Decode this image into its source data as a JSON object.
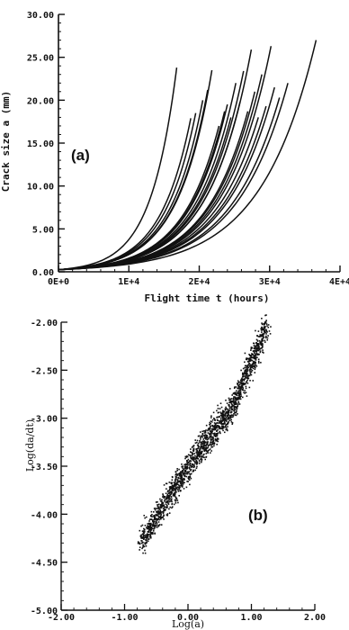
{
  "chart_data": [
    {
      "type": "line",
      "panel_label": "(a)",
      "xlabel": "Flight time t (hours)",
      "ylabel": "Crack size a (mm)",
      "xlim": [
        0,
        40000
      ],
      "ylim": [
        0,
        30
      ],
      "x_ticks": [
        0,
        10000,
        20000,
        30000,
        40000
      ],
      "x_tick_labels": [
        "0E+0",
        "1E+4",
        "2E+4",
        "3E+4",
        "4E+4"
      ],
      "y_ticks": [
        0,
        5,
        10,
        15,
        20,
        25,
        30
      ],
      "y_tick_labels": [
        "0.00",
        "5.00",
        "10.00",
        "15.00",
        "20.00",
        "25.00",
        "30.00"
      ],
      "grid": false,
      "curve_shape": "exponential growth from a0 = 0.25 mm to the final crack size at the failure time",
      "a0": 0.25,
      "series": [
        {
          "tf": 16800,
          "af": 23.8
        },
        {
          "tf": 18800,
          "af": 17.9
        },
        {
          "tf": 19500,
          "af": 18.5
        },
        {
          "tf": 20500,
          "af": 20.0
        },
        {
          "tf": 21200,
          "af": 21.2
        },
        {
          "tf": 21800,
          "af": 23.5
        },
        {
          "tf": 22800,
          "af": 17.0
        },
        {
          "tf": 23600,
          "af": 18.7
        },
        {
          "tf": 24000,
          "af": 19.5
        },
        {
          "tf": 24500,
          "af": 18.0
        },
        {
          "tf": 25200,
          "af": 22.0
        },
        {
          "tf": 25800,
          "af": 19.8
        },
        {
          "tf": 26300,
          "af": 23.4
        },
        {
          "tf": 26900,
          "af": 18.7
        },
        {
          "tf": 27400,
          "af": 25.9
        },
        {
          "tf": 27900,
          "af": 21.0
        },
        {
          "tf": 28400,
          "af": 18.0
        },
        {
          "tf": 28900,
          "af": 23.0
        },
        {
          "tf": 29500,
          "af": 19.3
        },
        {
          "tf": 30200,
          "af": 26.3
        },
        {
          "tf": 30700,
          "af": 21.5
        },
        {
          "tf": 31400,
          "af": 20.3
        },
        {
          "tf": 32600,
          "af": 22.0
        },
        {
          "tf": 36600,
          "af": 27.0
        }
      ]
    },
    {
      "type": "scatter",
      "panel_label": "(b)",
      "xlabel": "Log(a)",
      "ylabel": "Log(da/dt)",
      "xlim": [
        -2,
        2
      ],
      "ylim": [
        -5,
        -2
      ],
      "x_ticks": [
        -2,
        -1,
        0,
        1,
        2
      ],
      "x_tick_labels": [
        "-2.00",
        "-1.00",
        "0.00",
        "1.00",
        "2.00"
      ],
      "y_ticks": [
        -5,
        -4.5,
        -4,
        -3.5,
        -3,
        -2.5,
        -2
      ],
      "y_tick_labels": [
        "-5.00",
        "-4.50",
        "-4.00",
        "-3.50",
        "-3.00",
        "-2.50",
        "-2.00"
      ],
      "grid": false,
      "points_band": {
        "trend": [
          [
            -0.65,
            -4.2
          ],
          [
            0.0,
            -3.5
          ],
          [
            0.7,
            -2.9
          ],
          [
            1.2,
            -2.1
          ]
        ],
        "x_range": [
          -0.75,
          1.25
        ],
        "n_points": 1800
      }
    }
  ]
}
